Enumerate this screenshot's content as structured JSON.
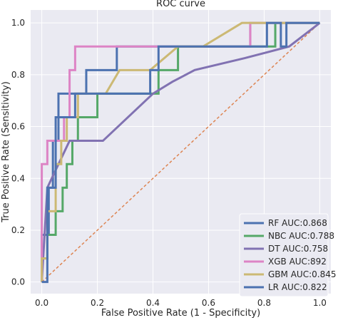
{
  "chart_data": {
    "type": "line",
    "title": "ROC curve",
    "xlabel": "False Positive Rate (1 - Specificity)",
    "ylabel": "True Positive Rate (Sensitivity)",
    "xlim": [
      -0.04,
      1.04
    ],
    "ylim": [
      -0.045,
      1.05
    ],
    "x_ticks": [
      0.0,
      0.2,
      0.4,
      0.6,
      0.8,
      1.0
    ],
    "x_tick_labels": [
      "0.0",
      "0.2",
      "0.4",
      "0.6",
      "0.8",
      "1.0"
    ],
    "y_ticks": [
      0.0,
      0.2,
      0.4,
      0.6,
      0.8,
      1.0
    ],
    "y_tick_labels": [
      "0.0",
      "0.2",
      "0.4",
      "0.6",
      "0.8",
      "1.0"
    ],
    "grid": true,
    "legend_position": "lower right",
    "series": [
      {
        "name": "RF AUC:0.868",
        "color": "#4c72b0",
        "points": [
          [
            0.0,
            0.0
          ],
          [
            0.0,
            0.182
          ],
          [
            0.025,
            0.182
          ],
          [
            0.025,
            0.364
          ],
          [
            0.04,
            0.364
          ],
          [
            0.04,
            0.545
          ],
          [
            0.06,
            0.545
          ],
          [
            0.06,
            0.727
          ],
          [
            0.16,
            0.727
          ],
          [
            0.16,
            0.818
          ],
          [
            0.27,
            0.818
          ],
          [
            0.27,
            0.909
          ],
          [
            0.75,
            0.909
          ],
          [
            0.75,
            1.0
          ],
          [
            1.0,
            1.0
          ]
        ]
      },
      {
        "name": "NBC AUC:0.788",
        "color": "#55a868",
        "points": [
          [
            0.0,
            0.0
          ],
          [
            0.0,
            0.091
          ],
          [
            0.02,
            0.091
          ],
          [
            0.02,
            0.182
          ],
          [
            0.05,
            0.182
          ],
          [
            0.05,
            0.273
          ],
          [
            0.075,
            0.273
          ],
          [
            0.075,
            0.364
          ],
          [
            0.09,
            0.364
          ],
          [
            0.09,
            0.455
          ],
          [
            0.11,
            0.455
          ],
          [
            0.11,
            0.545
          ],
          [
            0.13,
            0.545
          ],
          [
            0.13,
            0.636
          ],
          [
            0.2,
            0.636
          ],
          [
            0.2,
            0.727
          ],
          [
            0.42,
            0.727
          ],
          [
            0.42,
            0.818
          ],
          [
            0.49,
            0.818
          ],
          [
            0.49,
            0.909
          ],
          [
            0.75,
            0.909
          ],
          [
            0.75,
            0.909
          ],
          [
            0.84,
            0.909
          ],
          [
            0.84,
            1.0
          ],
          [
            1.0,
            1.0
          ]
        ]
      },
      {
        "name": "DT AUC:0.758",
        "color": "#8172b2",
        "points": [
          [
            0.0,
            0.0
          ],
          [
            0.02,
            0.364
          ],
          [
            0.1,
            0.545
          ],
          [
            0.22,
            0.545
          ],
          [
            0.4,
            0.727
          ],
          [
            0.47,
            0.773
          ],
          [
            0.55,
            0.818
          ],
          [
            0.73,
            0.864
          ],
          [
            0.89,
            0.909
          ],
          [
            1.0,
            1.0
          ]
        ]
      },
      {
        "name": "XGB AUC:892",
        "color": "#dd84c5",
        "points": [
          [
            0.0,
            0.0
          ],
          [
            0.0,
            0.182
          ],
          [
            0.0,
            0.455
          ],
          [
            0.02,
            0.455
          ],
          [
            0.02,
            0.545
          ],
          [
            0.08,
            0.545
          ],
          [
            0.08,
            0.636
          ],
          [
            0.1,
            0.636
          ],
          [
            0.1,
            0.818
          ],
          [
            0.12,
            0.818
          ],
          [
            0.12,
            0.909
          ],
          [
            0.42,
            0.909
          ],
          [
            0.42,
            0.909
          ],
          [
            0.75,
            0.909
          ],
          [
            0.75,
            1.0
          ],
          [
            1.0,
            1.0
          ]
        ]
      },
      {
        "name": "GBM AUC:0.845",
        "color": "#ccb974",
        "points": [
          [
            0.0,
            0.0
          ],
          [
            0.0,
            0.091
          ],
          [
            0.02,
            0.091
          ],
          [
            0.02,
            0.273
          ],
          [
            0.05,
            0.273
          ],
          [
            0.05,
            0.455
          ],
          [
            0.07,
            0.455
          ],
          [
            0.07,
            0.545
          ],
          [
            0.09,
            0.545
          ],
          [
            0.09,
            0.636
          ],
          [
            0.13,
            0.636
          ],
          [
            0.13,
            0.727
          ],
          [
            0.23,
            0.727
          ],
          [
            0.28,
            0.818
          ],
          [
            0.39,
            0.818
          ],
          [
            0.39,
            0.818
          ],
          [
            0.49,
            0.909
          ],
          [
            0.58,
            0.909
          ],
          [
            0.72,
            1.0
          ],
          [
            1.0,
            1.0
          ]
        ]
      },
      {
        "name": "LR AUC:0.822",
        "color": "#4c72b0",
        "points": [
          [
            0.0,
            0.0
          ],
          [
            0.02,
            0.0
          ],
          [
            0.02,
            0.364
          ],
          [
            0.05,
            0.364
          ],
          [
            0.05,
            0.636
          ],
          [
            0.12,
            0.636
          ],
          [
            0.12,
            0.727
          ],
          [
            0.39,
            0.727
          ],
          [
            0.39,
            0.818
          ],
          [
            0.42,
            0.818
          ],
          [
            0.42,
            0.909
          ],
          [
            0.81,
            0.909
          ],
          [
            0.81,
            1.0
          ],
          [
            0.86,
            1.0
          ],
          [
            0.86,
            0.909
          ],
          [
            0.88,
            0.909
          ],
          [
            0.88,
            1.0
          ],
          [
            1.0,
            1.0
          ]
        ]
      }
    ],
    "reference_line": {
      "points": [
        [
          0.0,
          0.0
        ],
        [
          1.0,
          1.0
        ]
      ],
      "color": "#dd8452",
      "style": "dashed"
    }
  }
}
